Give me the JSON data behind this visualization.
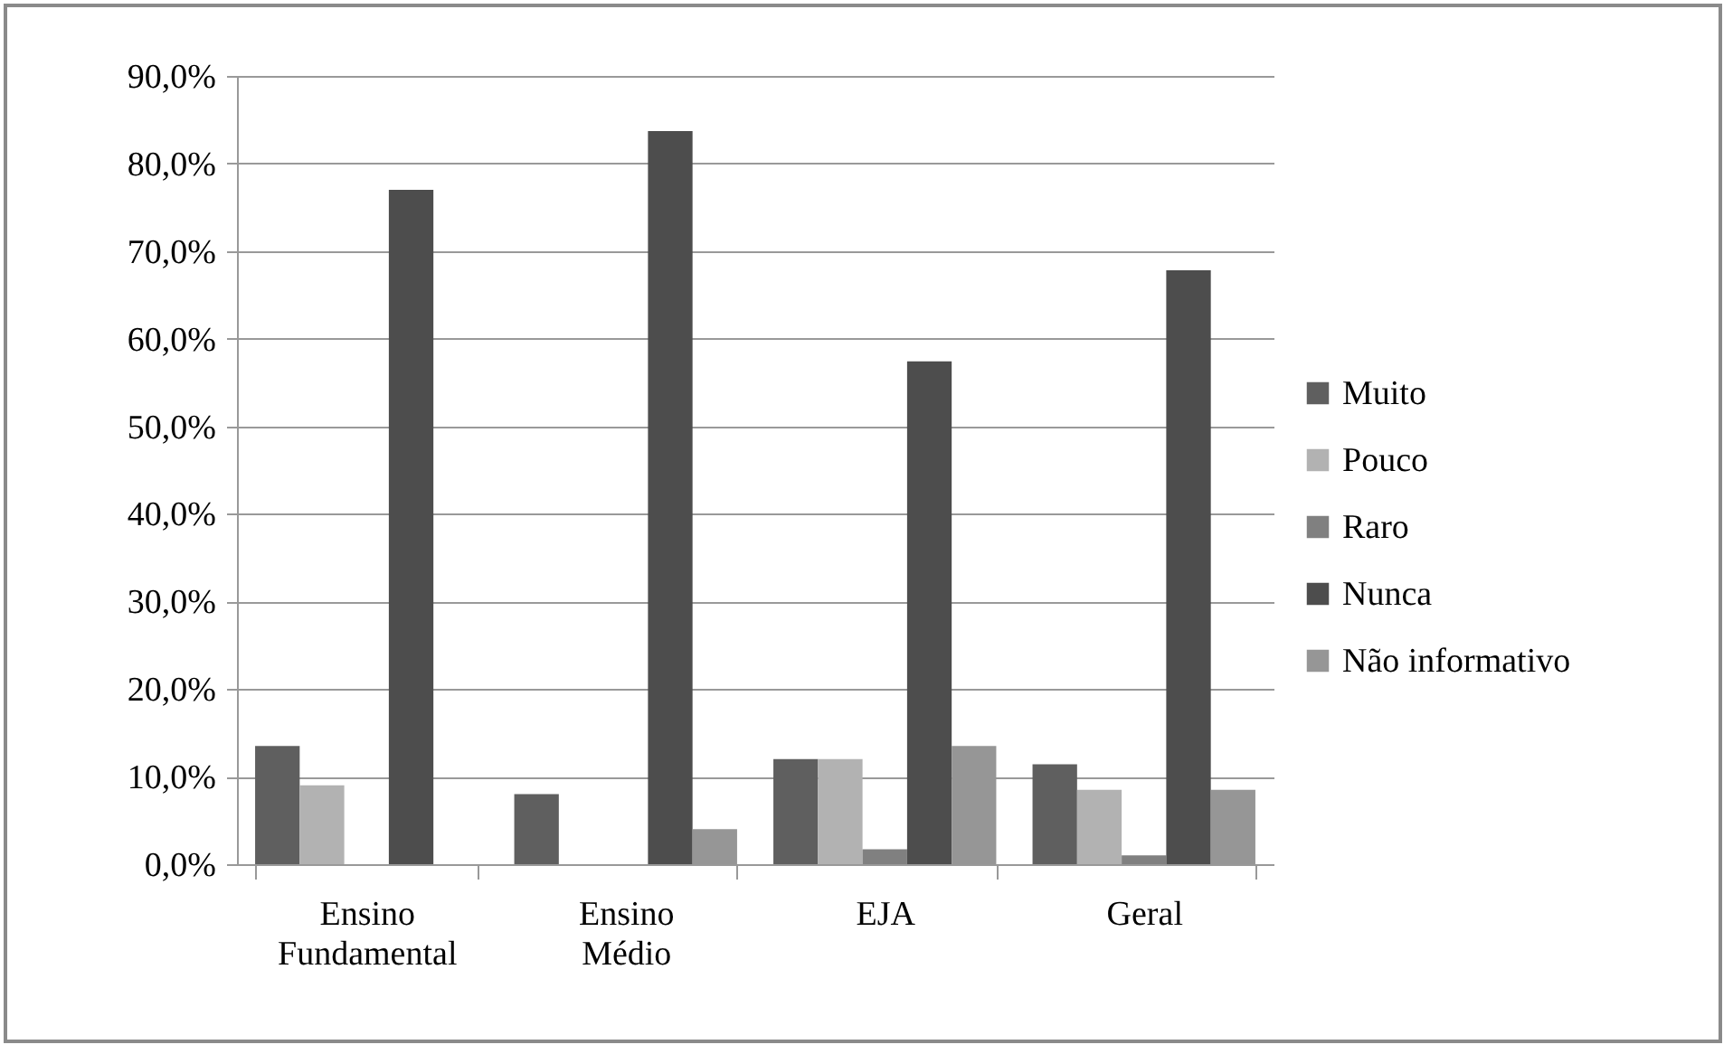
{
  "chart_data": {
    "type": "bar",
    "categories": [
      "Ensino Fundamental",
      "Ensino Médio",
      "EJA",
      "Geral"
    ],
    "series": [
      {
        "name": "Muito",
        "color": "#5f5f5f",
        "values": [
          13.5,
          8.0,
          12.0,
          11.4
        ]
      },
      {
        "name": "Pouco",
        "color": "#b2b2b2",
        "values": [
          9.0,
          0,
          12.0,
          8.5
        ]
      },
      {
        "name": "Raro",
        "color": "#808080",
        "values": [
          0,
          0,
          1.7,
          1.0
        ]
      },
      {
        "name": "Nunca",
        "color": "#4d4d4d",
        "values": [
          77.0,
          83.7,
          57.4,
          67.8
        ]
      },
      {
        "name": "Não informativo",
        "color": "#969696",
        "values": [
          0,
          4.0,
          13.5,
          8.5
        ]
      }
    ],
    "ylim": [
      0,
      90
    ],
    "yticks": [
      {
        "value": 0,
        "label": "0,0%"
      },
      {
        "value": 10,
        "label": "10,0%"
      },
      {
        "value": 20,
        "label": "20,0%"
      },
      {
        "value": 30,
        "label": "30,0%"
      },
      {
        "value": 40,
        "label": "40,0%"
      },
      {
        "value": 50,
        "label": "50,0%"
      },
      {
        "value": 60,
        "label": "60,0%"
      },
      {
        "value": 70,
        "label": "70,0%"
      },
      {
        "value": 80,
        "label": "80,0%"
      },
      {
        "value": 90,
        "label": "90,0%"
      }
    ],
    "grid": "y",
    "legend": "right"
  }
}
